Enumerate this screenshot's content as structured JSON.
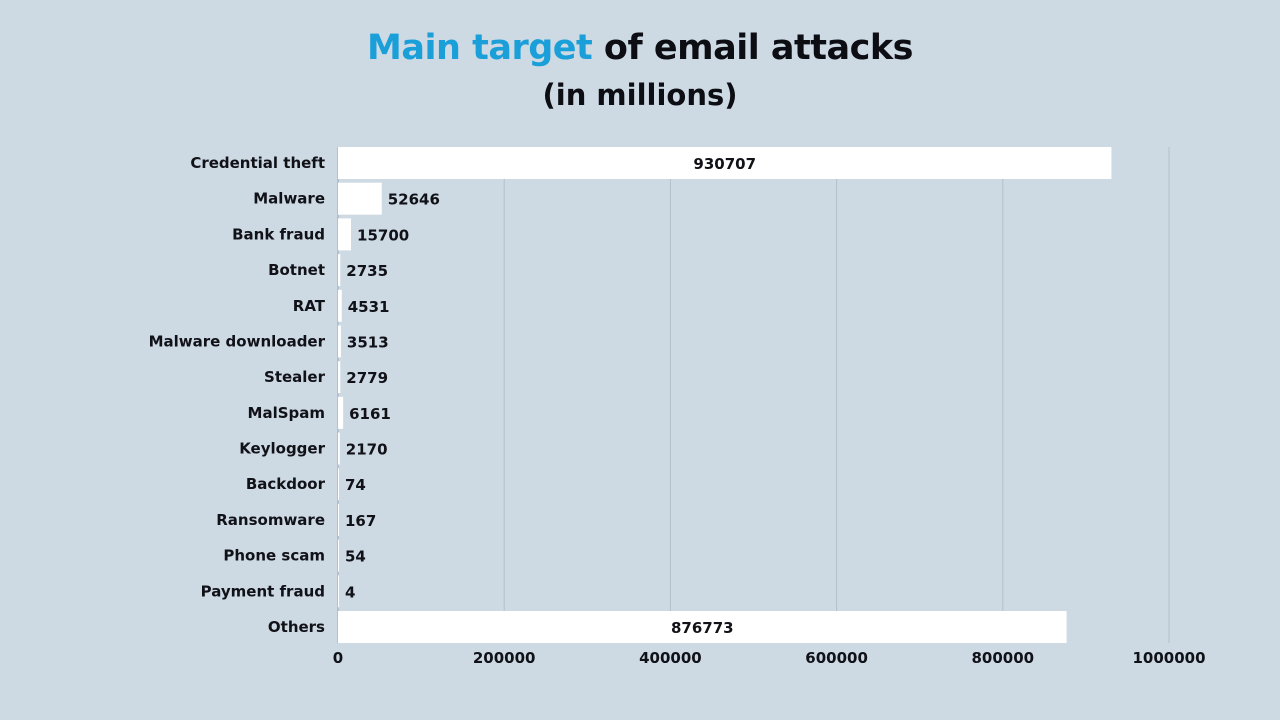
{
  "chart_data": {
    "type": "bar",
    "orientation": "horizontal",
    "title_highlight": "Main target",
    "title_rest": "of email attacks",
    "subtitle": "(in millions)",
    "categories": [
      "Credential theft",
      "Malware",
      "Bank fraud",
      "Botnet",
      "RAT",
      "Malware downloader",
      "Stealer",
      "MalSpam",
      "Keylogger",
      "Backdoor",
      "Ransomware",
      "Phone scam",
      "Payment fraud",
      "Others"
    ],
    "values": [
      930707,
      52646,
      15700,
      2735,
      4531,
      3513,
      2779,
      6161,
      2170,
      74,
      167,
      54,
      4,
      876773
    ],
    "xlim": [
      0,
      1000000
    ],
    "xticks": [
      "0",
      "200000",
      "400000",
      "600000",
      "800000",
      "1000000"
    ],
    "grid": true,
    "legend": "none",
    "colors": {
      "bar": "#ffffff",
      "background": "#cdd9e3",
      "title_accent": "#1a9fd9",
      "grid": "#b3c0cc"
    }
  }
}
